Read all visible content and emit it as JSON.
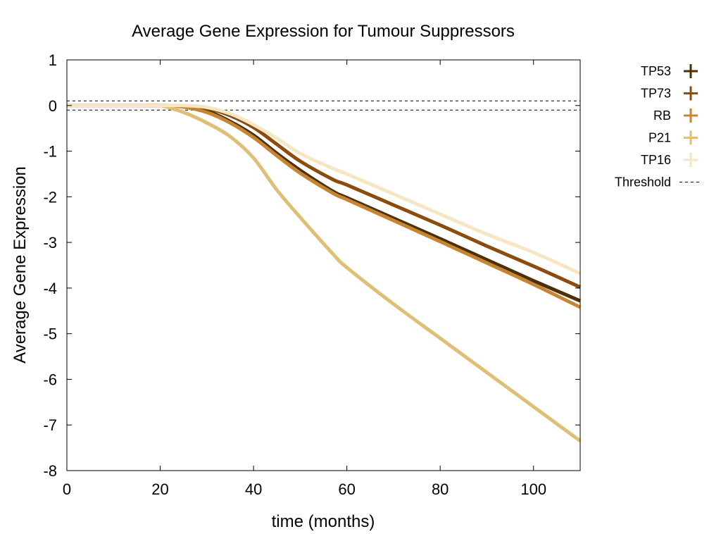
{
  "chart_data": {
    "type": "line",
    "title": "Average Gene Expression for Tumour Suppressors",
    "xlabel": "time (months)",
    "ylabel": "Average Gene Expression",
    "xlim": [
      0,
      110
    ],
    "ylim": [
      -8,
      1
    ],
    "xticks": [
      0,
      20,
      40,
      60,
      80,
      100
    ],
    "yticks": [
      1,
      0,
      -1,
      -2,
      -3,
      -4,
      -5,
      -6,
      -7,
      -8
    ],
    "grid": false,
    "legend_position": "outside-right",
    "x": [
      0,
      5,
      10,
      15,
      20,
      25,
      30,
      35,
      40,
      45,
      50,
      57,
      60,
      70,
      80,
      90,
      100,
      110
    ],
    "series": [
      {
        "name": "TP53",
        "color": "#4d2f05",
        "values": [
          0,
          0,
          0,
          0,
          0,
          -0.02,
          -0.12,
          -0.35,
          -0.65,
          -1.05,
          -1.42,
          -1.88,
          -2.02,
          -2.47,
          -2.92,
          -3.38,
          -3.84,
          -4.28
        ]
      },
      {
        "name": "TP73",
        "color": "#8b4c0e",
        "values": [
          0,
          0,
          0,
          0,
          0,
          -0.01,
          -0.06,
          -0.22,
          -0.48,
          -0.85,
          -1.22,
          -1.62,
          -1.74,
          -2.18,
          -2.62,
          -3.08,
          -3.52,
          -3.98
        ]
      },
      {
        "name": "RB",
        "color": "#c68532",
        "values": [
          0,
          0,
          0,
          0,
          0,
          -0.03,
          -0.15,
          -0.38,
          -0.7,
          -1.1,
          -1.48,
          -1.92,
          -2.06,
          -2.52,
          -2.98,
          -3.45,
          -3.92,
          -4.42
        ]
      },
      {
        "name": "P21",
        "color": "#dfbf76",
        "values": [
          0,
          0,
          0,
          0,
          0,
          -0.15,
          -0.38,
          -0.68,
          -1.15,
          -1.85,
          -2.45,
          -3.25,
          -3.55,
          -4.35,
          -5.1,
          -5.85,
          -6.6,
          -7.35
        ]
      },
      {
        "name": "TP16",
        "color": "#f6e6c3",
        "values": [
          0,
          0,
          0,
          0,
          0,
          0,
          -0.04,
          -0.18,
          -0.42,
          -0.72,
          -1.05,
          -1.38,
          -1.5,
          -1.94,
          -2.38,
          -2.82,
          -3.22,
          -3.68
        ]
      }
    ],
    "threshold": {
      "name": "Threshold",
      "values": [
        0.1,
        -0.1
      ],
      "color": "#000000",
      "style": "dashed"
    }
  }
}
